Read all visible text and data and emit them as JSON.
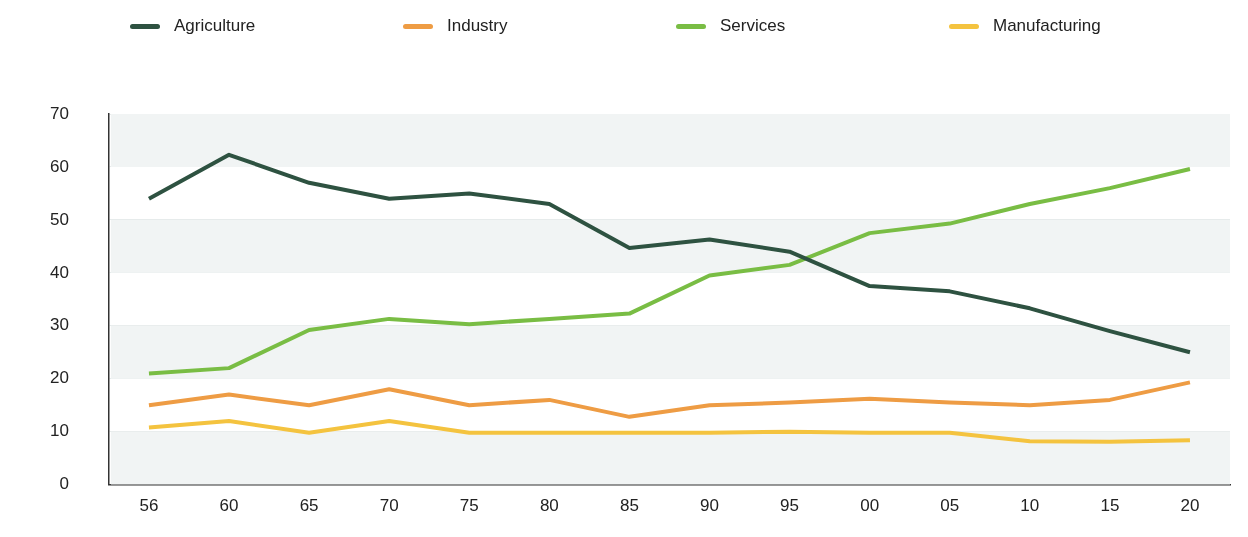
{
  "chart_data": {
    "type": "line",
    "categories": [
      "56",
      "60",
      "65",
      "70",
      "75",
      "80",
      "85",
      "90",
      "95",
      "00",
      "05",
      "10",
      "15",
      "20"
    ],
    "series": [
      {
        "name": "Agriculture",
        "color": "#2e5241",
        "values": [
          54,
          62.3,
          57,
          54,
          55,
          53,
          44.7,
          46.3,
          44,
          37.5,
          36.5,
          33.3,
          29,
          25
        ]
      },
      {
        "name": "Industry",
        "color": "#ee9c44",
        "values": [
          15,
          17,
          15,
          18,
          15,
          16,
          12.8,
          15,
          15.5,
          16.2,
          15.5,
          15,
          16,
          19.3
        ]
      },
      {
        "name": "Services",
        "color": "#79bd44",
        "values": [
          21,
          22,
          29.2,
          31.3,
          30.3,
          31.3,
          32.3,
          39.5,
          41.5,
          47.5,
          49.3,
          53,
          56,
          59.6
        ]
      },
      {
        "name": "Manufacturing",
        "color": "#f4c33f",
        "values": [
          10.8,
          12,
          9.8,
          12,
          9.8,
          9.8,
          9.8,
          9.8,
          10,
          9.8,
          9.8,
          8.2,
          8.1,
          8.4
        ]
      }
    ],
    "ylim": [
      0,
      70
    ],
    "yticks": [
      0,
      10,
      20,
      30,
      40,
      50,
      60,
      70
    ],
    "grid": "y",
    "legend": "top",
    "marker": "none",
    "line_style": "solid"
  }
}
